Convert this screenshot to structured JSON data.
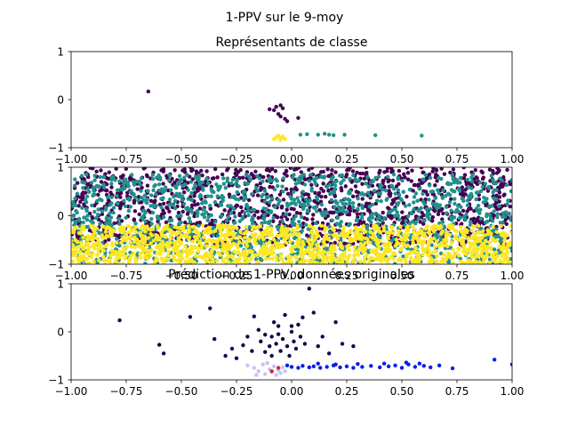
{
  "figure": {
    "suptitle": "1-PPV sur le 9-moy"
  },
  "colors": {
    "viridis_purple": "#440154",
    "viridis_teal": "#21918c",
    "viridis_yellow": "#fde725",
    "navy": "#0b0b4a",
    "blue": "#0a1ee6",
    "lavender": "#c4c4f5",
    "red": "#d62728"
  },
  "chart_data": [
    {
      "type": "scatter",
      "title": "Représentants de classe",
      "xlim": [
        -1.0,
        1.0
      ],
      "ylim": [
        -1,
        1
      ],
      "xticks": [
        "−1.00",
        "−0.75",
        "−0.50",
        "−0.25",
        "0.00",
        "0.25",
        "0.50",
        "0.75",
        "1.00"
      ],
      "xtick_values": [
        -1.0,
        -0.75,
        -0.5,
        -0.25,
        0.0,
        0.25,
        0.5,
        0.75,
        1.0
      ],
      "yticks": [
        "−1",
        "0",
        "1"
      ],
      "ytick_values": [
        -1,
        0,
        1
      ],
      "series": [
        {
          "color": "#440154",
          "points": [
            [
              -0.65,
              0.17
            ],
            [
              -0.1,
              -0.2
            ],
            [
              -0.07,
              -0.15
            ],
            [
              -0.05,
              -0.12
            ],
            [
              -0.08,
              -0.22
            ],
            [
              -0.04,
              -0.18
            ],
            [
              -0.06,
              -0.3
            ],
            [
              -0.03,
              -0.4
            ],
            [
              -0.05,
              -0.35
            ],
            [
              0.03,
              -0.38
            ],
            [
              -0.02,
              -0.45
            ]
          ]
        },
        {
          "color": "#21918c",
          "points": [
            [
              0.04,
              -0.73
            ],
            [
              0.07,
              -0.72
            ],
            [
              0.12,
              -0.73
            ],
            [
              0.15,
              -0.71
            ],
            [
              0.17,
              -0.73
            ],
            [
              0.19,
              -0.74
            ],
            [
              0.24,
              -0.73
            ],
            [
              0.38,
              -0.74
            ],
            [
              0.59,
              -0.75
            ]
          ]
        },
        {
          "color": "#fde725",
          "points": [
            [
              -0.07,
              -0.78
            ],
            [
              -0.05,
              -0.8
            ],
            [
              -0.06,
              -0.75
            ],
            [
              -0.04,
              -0.77
            ],
            [
              -0.03,
              -0.82
            ],
            [
              -0.08,
              -0.82
            ],
            [
              -0.05,
              -0.84
            ]
          ]
        }
      ]
    },
    {
      "type": "scatter",
      "title": "",
      "xlim": [
        -1.0,
        1.0
      ],
      "ylim": [
        -1,
        1
      ],
      "xticks": [
        "−1.00",
        "−0.75",
        "−0.50",
        "−0.25",
        "0.00",
        "0.25",
        "0.50",
        "0.75",
        "1.00"
      ],
      "xtick_values": [
        -1.0,
        -0.75,
        -0.5,
        -0.25,
        0.0,
        0.25,
        0.5,
        0.75,
        1.0
      ],
      "yticks": [
        "−1",
        "0",
        "1"
      ],
      "ytick_values": [
        -1,
        0,
        1
      ],
      "note_points": "dense uniform cloud; purple dominates upper region, yellow bottom band, teal mixed",
      "series": [
        {
          "color": "#440154",
          "region": {
            "x": [
              -1.0,
              1.0
            ],
            "y": [
              -0.6,
              1.0
            ]
          }
        },
        {
          "color": "#21918c",
          "region": {
            "x": [
              -1.0,
              1.0
            ],
            "y": [
              -1.0,
              0.85
            ]
          }
        },
        {
          "color": "#fde725",
          "region": {
            "x": [
              -1.0,
              1.0
            ],
            "y": [
              -1.0,
              -0.2
            ]
          }
        }
      ]
    },
    {
      "type": "scatter",
      "title": "Prédiction de 1-PPV, données originales",
      "xlim": [
        -1.0,
        1.0
      ],
      "ylim": [
        -1,
        1
      ],
      "xticks": [
        "−1.00",
        "−0.75",
        "−0.50",
        "−0.25",
        "0.00",
        "0.25",
        "0.50",
        "0.75",
        "1.00"
      ],
      "xtick_values": [
        -1.0,
        -0.75,
        -0.5,
        -0.25,
        0.0,
        0.25,
        0.5,
        0.75,
        1.0
      ],
      "yticks": [
        "−1",
        "0",
        "1"
      ],
      "ytick_values": [
        -1,
        0,
        1
      ],
      "series": [
        {
          "color": "#0b0b4a",
          "points": [
            [
              -0.78,
              0.24
            ],
            [
              -0.6,
              -0.27
            ],
            [
              -0.58,
              -0.45
            ],
            [
              -0.46,
              0.31
            ],
            [
              -0.37,
              0.49
            ],
            [
              -0.35,
              -0.15
            ],
            [
              -0.3,
              -0.5
            ],
            [
              -0.27,
              -0.35
            ],
            [
              -0.25,
              -0.55
            ],
            [
              -0.22,
              -0.28
            ],
            [
              -0.2,
              -0.1
            ],
            [
              -0.18,
              -0.4
            ],
            [
              -0.15,
              0.04
            ],
            [
              -0.14,
              -0.2
            ],
            [
              -0.12,
              -0.06
            ],
            [
              -0.1,
              -0.3
            ],
            [
              -0.09,
              -0.1
            ],
            [
              -0.08,
              0.2
            ],
            [
              -0.07,
              -0.25
            ],
            [
              -0.06,
              -0.05
            ],
            [
              -0.05,
              -0.4
            ],
            [
              -0.04,
              -0.15
            ],
            [
              -0.03,
              0.35
            ],
            [
              -0.02,
              -0.3
            ],
            [
              -0.01,
              -0.5
            ],
            [
              0.0,
              0.0
            ],
            [
              0.01,
              -0.2
            ],
            [
              0.02,
              -0.35
            ],
            [
              0.03,
              0.15
            ],
            [
              0.04,
              -0.1
            ],
            [
              0.06,
              -0.25
            ],
            [
              0.08,
              0.9
            ],
            [
              0.1,
              0.4
            ],
            [
              0.12,
              -0.3
            ],
            [
              0.14,
              -0.1
            ],
            [
              0.17,
              -0.45
            ],
            [
              0.2,
              0.2
            ],
            [
              0.23,
              -0.25
            ],
            [
              0.28,
              -0.3
            ],
            [
              -0.17,
              0.32
            ],
            [
              -0.12,
              -0.42
            ],
            [
              -0.09,
              -0.5
            ],
            [
              0.05,
              0.3
            ],
            [
              0.0,
              0.12
            ],
            [
              -0.06,
              0.12
            ]
          ]
        },
        {
          "color": "#0a1ee6",
          "points": [
            [
              -0.02,
              -0.7
            ],
            [
              0.0,
              -0.73
            ],
            [
              0.03,
              -0.75
            ],
            [
              0.05,
              -0.71
            ],
            [
              0.08,
              -0.74
            ],
            [
              0.1,
              -0.72
            ],
            [
              0.13,
              -0.75
            ],
            [
              0.16,
              -0.73
            ],
            [
              0.19,
              -0.7
            ],
            [
              0.22,
              -0.74
            ],
            [
              0.25,
              -0.72
            ],
            [
              0.28,
              -0.75
            ],
            [
              0.32,
              -0.73
            ],
            [
              0.36,
              -0.71
            ],
            [
              0.4,
              -0.74
            ],
            [
              0.44,
              -0.72
            ],
            [
              0.47,
              -0.7
            ],
            [
              0.5,
              -0.75
            ],
            [
              0.53,
              -0.68
            ],
            [
              0.56,
              -0.73
            ],
            [
              0.6,
              -0.71
            ],
            [
              0.63,
              -0.74
            ],
            [
              0.67,
              -0.7
            ],
            [
              0.73,
              -0.76
            ],
            [
              0.92,
              -0.58
            ],
            [
              1.0,
              -0.68
            ],
            [
              0.12,
              -0.66
            ],
            [
              0.2,
              -0.68
            ],
            [
              0.3,
              -0.67
            ],
            [
              0.42,
              -0.66
            ],
            [
              0.52,
              -0.64
            ],
            [
              0.58,
              -0.66
            ]
          ]
        },
        {
          "color": "#c4c4f5",
          "points": [
            [
              -0.2,
              -0.7
            ],
            [
              -0.17,
              -0.75
            ],
            [
              -0.15,
              -0.82
            ],
            [
              -0.13,
              -0.68
            ],
            [
              -0.12,
              -0.88
            ],
            [
              -0.1,
              -0.78
            ],
            [
              -0.09,
              -0.84
            ],
            [
              -0.08,
              -0.72
            ],
            [
              -0.07,
              -0.9
            ],
            [
              -0.06,
              -0.8
            ],
            [
              -0.05,
              -0.86
            ],
            [
              -0.04,
              -0.74
            ],
            [
              -0.03,
              -0.82
            ],
            [
              -0.16,
              -0.9
            ],
            [
              -0.11,
              -0.65
            ]
          ]
        },
        {
          "color": "#d62728",
          "points": [
            [
              -0.09,
              -0.82
            ],
            [
              -0.06,
              -0.75
            ]
          ]
        }
      ]
    }
  ]
}
